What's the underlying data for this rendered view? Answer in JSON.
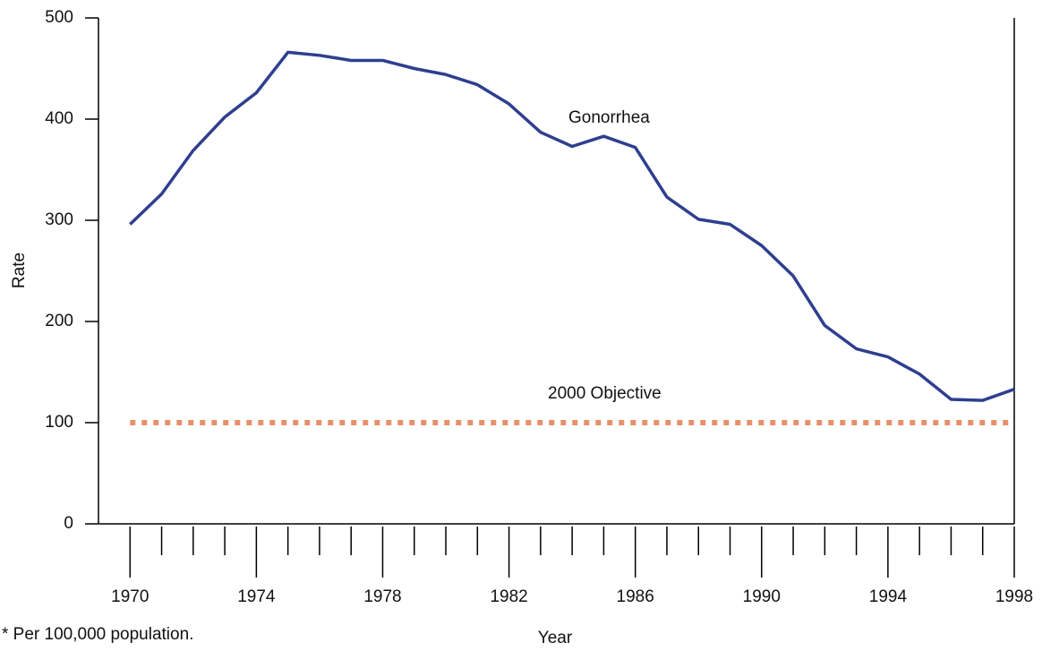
{
  "chart_data": {
    "type": "line",
    "x_label": "Year",
    "y_label": "Rate",
    "footnote": "* Per 100,000 population.",
    "annotations": [
      "Gonorrhea",
      "2000 Objective"
    ],
    "x": [
      1970,
      1971,
      1972,
      1973,
      1974,
      1975,
      1976,
      1977,
      1978,
      1979,
      1980,
      1981,
      1982,
      1983,
      1984,
      1985,
      1986,
      1987,
      1988,
      1989,
      1990,
      1991,
      1992,
      1993,
      1994,
      1995,
      1996,
      1997,
      1998
    ],
    "series": [
      {
        "name": "Gonorrhea",
        "color": "#2e3f8f",
        "style": "solid",
        "values": [
          296,
          326,
          369,
          402,
          426,
          466,
          463,
          458,
          458,
          450,
          444,
          434,
          415,
          387,
          373,
          383,
          372,
          323,
          301,
          296,
          275,
          245,
          196,
          173,
          165,
          148,
          123,
          122,
          133
        ]
      },
      {
        "name": "2000 Objective",
        "color": "#e8906a",
        "style": "dotted",
        "values": [
          100,
          100,
          100,
          100,
          100,
          100,
          100,
          100,
          100,
          100,
          100,
          100,
          100,
          100,
          100,
          100,
          100,
          100,
          100,
          100,
          100,
          100,
          100,
          100,
          100,
          100,
          100,
          100,
          100
        ]
      }
    ],
    "xlim": [
      1969,
      1998
    ],
    "xticks": [
      1970,
      1974,
      1978,
      1982,
      1986,
      1990,
      1994,
      1998
    ],
    "ylim": [
      0,
      500
    ],
    "yticks": [
      0,
      100,
      200,
      300,
      400,
      500
    ]
  }
}
